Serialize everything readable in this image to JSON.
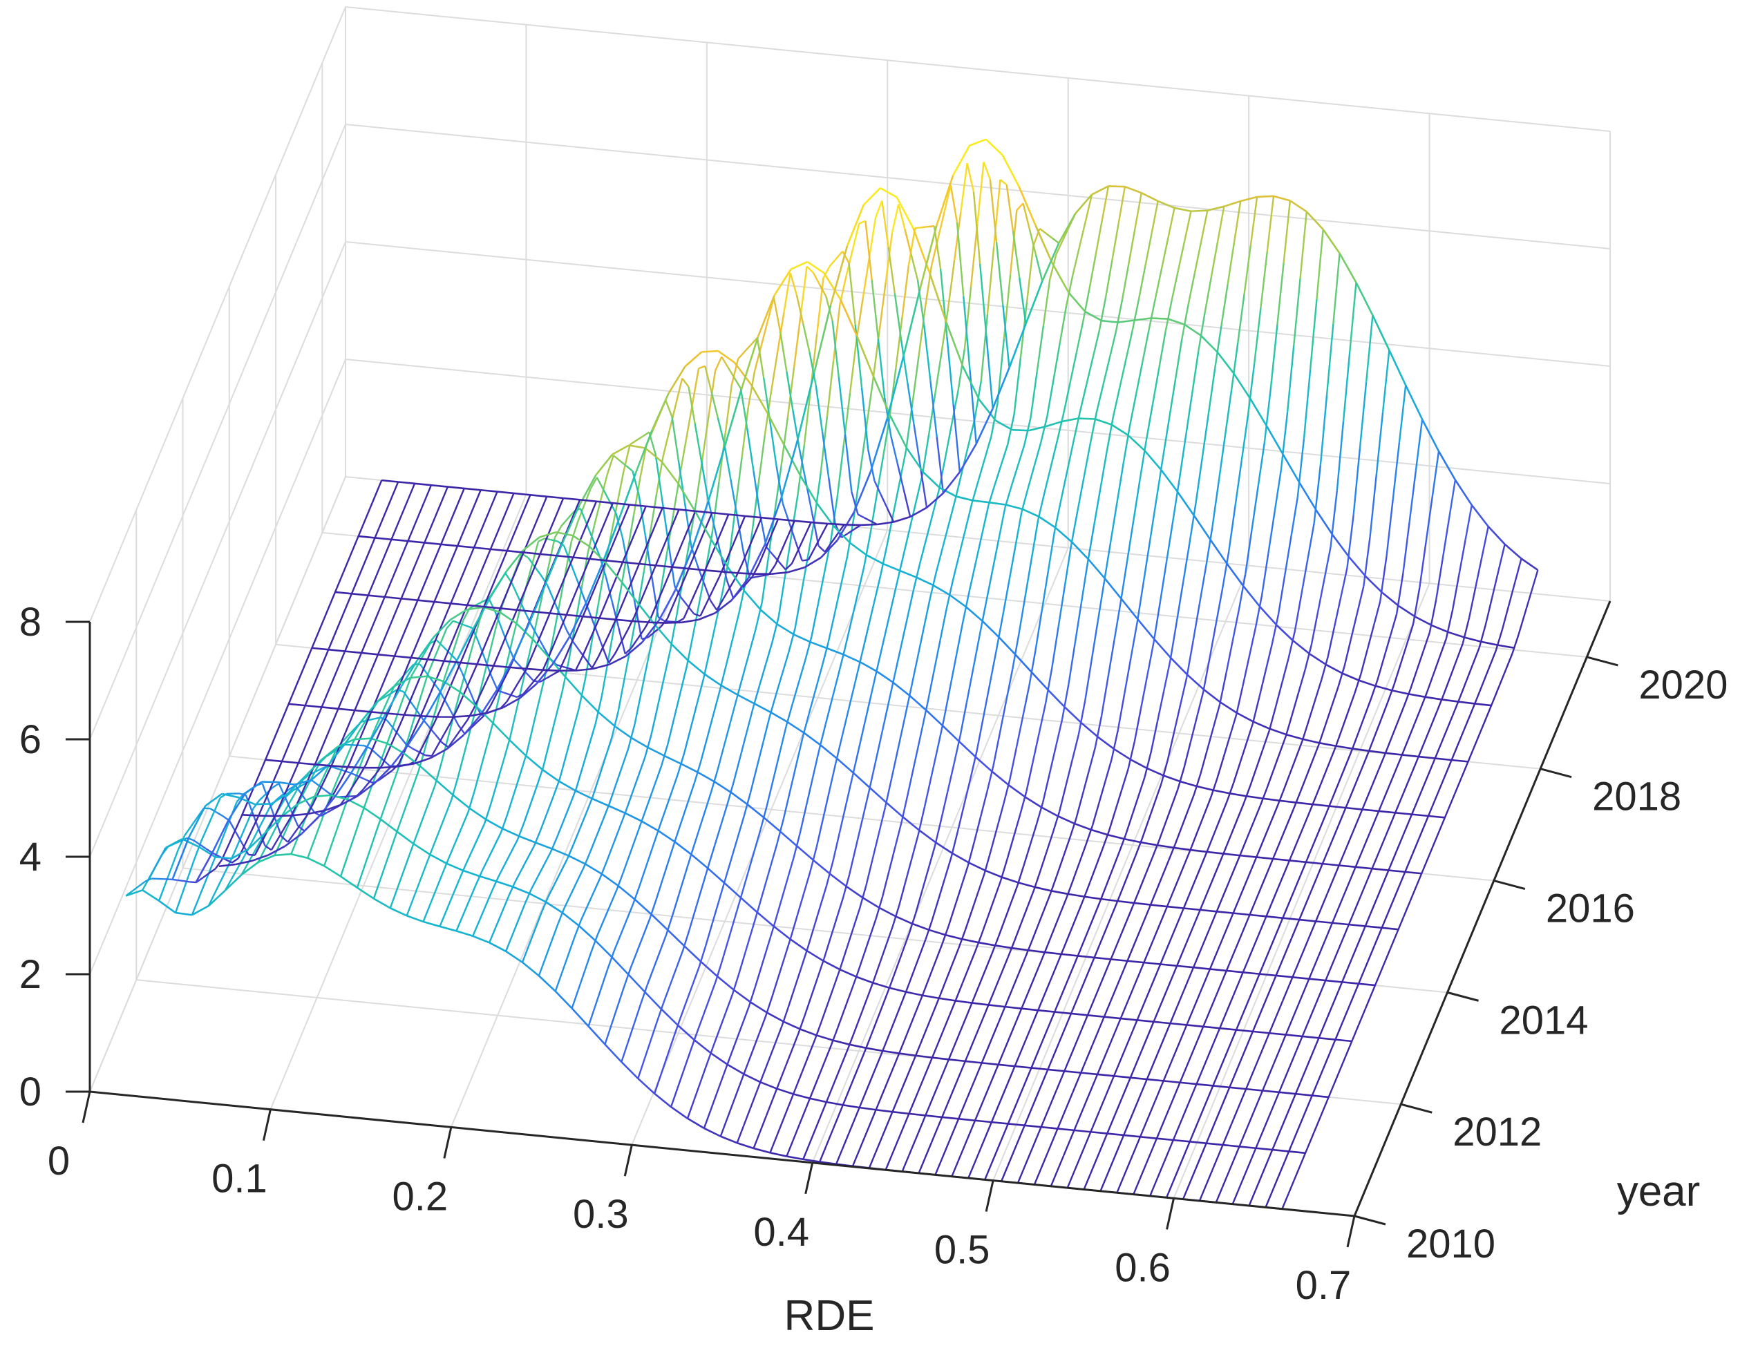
{
  "chart_data": {
    "type": "surface",
    "title": "",
    "xlabel": "RDE",
    "ylabel": "year",
    "zlabel": "",
    "xlim": [
      0,
      0.7
    ],
    "ylim": [
      2010,
      2021
    ],
    "zlim": [
      0,
      8
    ],
    "x_ticks": [
      "0",
      "0.1",
      "0.2",
      "0.3",
      "0.4",
      "0.5",
      "0.6",
      "0.7"
    ],
    "y_ticks": [
      "2010",
      "2012",
      "2014",
      "2016",
      "2018",
      "2020"
    ],
    "z_ticks": [
      "0",
      "2",
      "4",
      "6",
      "8"
    ],
    "grid": true,
    "colormap": "parula",
    "years": [
      2010,
      2011,
      2012,
      2013,
      2014,
      2015,
      2016,
      2017,
      2018,
      2019,
      2020,
      2021
    ],
    "density_peaks_per_year": [
      {
        "year": 2010,
        "peaks": [
          {
            "x": 0.02,
            "z": 2.3,
            "w": 0.02
          },
          {
            "x": 0.1,
            "z": 3.9,
            "w": 0.05
          },
          {
            "x": 0.22,
            "z": 3.0,
            "w": 0.06
          }
        ]
      },
      {
        "year": 2011,
        "peaks": [
          {
            "x": 0.03,
            "z": 2.2,
            "w": 0.02
          },
          {
            "x": 0.11,
            "z": 4.0,
            "w": 0.05
          },
          {
            "x": 0.23,
            "z": 2.9,
            "w": 0.06
          }
        ]
      },
      {
        "year": 2012,
        "peaks": [
          {
            "x": 0.04,
            "z": 2.0,
            "w": 0.02
          },
          {
            "x": 0.12,
            "z": 4.1,
            "w": 0.05
          },
          {
            "x": 0.24,
            "z": 2.6,
            "w": 0.06
          }
        ]
      },
      {
        "year": 2013,
        "peaks": [
          {
            "x": 0.05,
            "z": 1.6,
            "w": 0.02
          },
          {
            "x": 0.14,
            "z": 4.3,
            "w": 0.05
          },
          {
            "x": 0.26,
            "z": 2.4,
            "w": 0.06
          }
        ]
      },
      {
        "year": 2014,
        "peaks": [
          {
            "x": 0.16,
            "z": 4.6,
            "w": 0.05
          },
          {
            "x": 0.28,
            "z": 2.3,
            "w": 0.06
          }
        ]
      },
      {
        "year": 2015,
        "peaks": [
          {
            "x": 0.19,
            "z": 5.0,
            "w": 0.05
          },
          {
            "x": 0.31,
            "z": 2.4,
            "w": 0.06
          }
        ]
      },
      {
        "year": 2016,
        "peaks": [
          {
            "x": 0.22,
            "z": 5.6,
            "w": 0.045
          },
          {
            "x": 0.34,
            "z": 2.6,
            "w": 0.06
          }
        ]
      },
      {
        "year": 2017,
        "peaks": [
          {
            "x": 0.25,
            "z": 6.3,
            "w": 0.045
          },
          {
            "x": 0.37,
            "z": 3.0,
            "w": 0.06
          }
        ]
      },
      {
        "year": 2018,
        "peaks": [
          {
            "x": 0.29,
            "z": 6.9,
            "w": 0.04
          },
          {
            "x": 0.41,
            "z": 3.5,
            "w": 0.06
          }
        ]
      },
      {
        "year": 2019,
        "peaks": [
          {
            "x": 0.32,
            "z": 7.2,
            "w": 0.035
          },
          {
            "x": 0.44,
            "z": 4.2,
            "w": 0.06
          }
        ]
      },
      {
        "year": 2020,
        "peaks": [
          {
            "x": 0.36,
            "z": 6.8,
            "w": 0.035
          },
          {
            "x": 0.47,
            "z": 5.0,
            "w": 0.06
          }
        ]
      },
      {
        "year": 2021,
        "peaks": [
          {
            "x": 0.41,
            "z": 4.8,
            "w": 0.04
          },
          {
            "x": 0.52,
            "z": 6.2,
            "w": 0.06
          }
        ]
      }
    ]
  }
}
